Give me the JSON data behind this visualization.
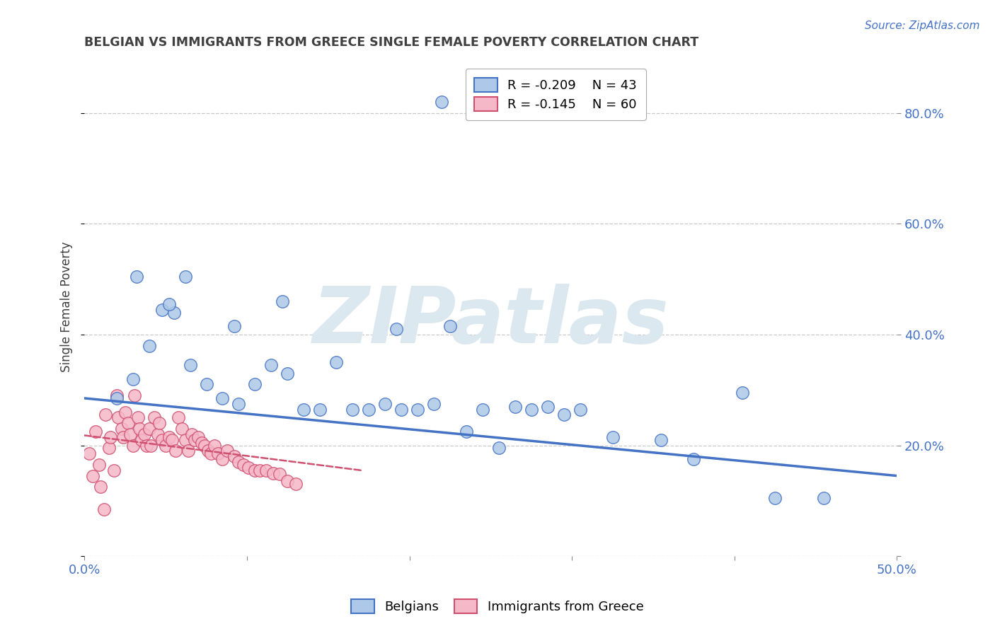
{
  "title": "BELGIAN VS IMMIGRANTS FROM GREECE SINGLE FEMALE POVERTY CORRELATION CHART",
  "source": "Source: ZipAtlas.com",
  "ylabel": "Single Female Poverty",
  "watermark": "ZIPatlas",
  "xlim": [
    0.0,
    0.5
  ],
  "ylim": [
    0.0,
    0.9
  ],
  "xticks": [
    0.0,
    0.1,
    0.2,
    0.3,
    0.4,
    0.5
  ],
  "yticks": [
    0.0,
    0.2,
    0.4,
    0.6,
    0.8
  ],
  "ytick_labels": [
    "",
    "20.0%",
    "40.0%",
    "60.0%",
    "80.0%"
  ],
  "xtick_labels": [
    "0.0%",
    "",
    "",
    "",
    "",
    "50.0%"
  ],
  "legend_entries": [
    {
      "label": "Belgians",
      "color": "#adc8e8",
      "edge": "#4472c4",
      "R": "-0.209",
      "N": "43"
    },
    {
      "label": "Immigrants from Greece",
      "color": "#f5b8c8",
      "edge": "#d05070",
      "R": "-0.145",
      "N": "60"
    }
  ],
  "belgian_x": [
    0.22,
    0.048,
    0.02,
    0.03,
    0.04,
    0.055,
    0.065,
    0.075,
    0.085,
    0.095,
    0.105,
    0.115,
    0.125,
    0.135,
    0.145,
    0.155,
    0.165,
    0.175,
    0.185,
    0.195,
    0.205,
    0.215,
    0.235,
    0.245,
    0.255,
    0.265,
    0.275,
    0.285,
    0.295,
    0.305,
    0.325,
    0.355,
    0.375,
    0.405,
    0.425,
    0.455,
    0.032,
    0.052,
    0.062,
    0.092,
    0.122,
    0.192,
    0.225
  ],
  "belgian_y": [
    0.82,
    0.445,
    0.285,
    0.32,
    0.38,
    0.44,
    0.345,
    0.31,
    0.285,
    0.275,
    0.31,
    0.345,
    0.33,
    0.265,
    0.265,
    0.35,
    0.265,
    0.265,
    0.275,
    0.265,
    0.265,
    0.275,
    0.225,
    0.265,
    0.195,
    0.27,
    0.265,
    0.27,
    0.255,
    0.265,
    0.215,
    0.21,
    0.175,
    0.295,
    0.105,
    0.105,
    0.505,
    0.455,
    0.505,
    0.415,
    0.46,
    0.41,
    0.415
  ],
  "greek_x": [
    0.003,
    0.005,
    0.007,
    0.009,
    0.01,
    0.012,
    0.013,
    0.015,
    0.016,
    0.018,
    0.02,
    0.021,
    0.023,
    0.024,
    0.025,
    0.027,
    0.028,
    0.03,
    0.031,
    0.033,
    0.034,
    0.035,
    0.037,
    0.038,
    0.04,
    0.041,
    0.043,
    0.045,
    0.046,
    0.048,
    0.05,
    0.052,
    0.054,
    0.056,
    0.058,
    0.06,
    0.062,
    0.064,
    0.066,
    0.068,
    0.07,
    0.072,
    0.074,
    0.076,
    0.078,
    0.08,
    0.082,
    0.085,
    0.088,
    0.092,
    0.095,
    0.098,
    0.101,
    0.105,
    0.108,
    0.112,
    0.116,
    0.12,
    0.125,
    0.13
  ],
  "greek_y": [
    0.185,
    0.145,
    0.225,
    0.165,
    0.125,
    0.085,
    0.255,
    0.195,
    0.215,
    0.155,
    0.29,
    0.25,
    0.23,
    0.215,
    0.26,
    0.24,
    0.22,
    0.2,
    0.29,
    0.25,
    0.23,
    0.21,
    0.22,
    0.2,
    0.23,
    0.2,
    0.25,
    0.22,
    0.24,
    0.21,
    0.2,
    0.215,
    0.21,
    0.19,
    0.25,
    0.23,
    0.21,
    0.19,
    0.22,
    0.21,
    0.215,
    0.205,
    0.2,
    0.19,
    0.185,
    0.2,
    0.185,
    0.175,
    0.19,
    0.18,
    0.17,
    0.165,
    0.16,
    0.155,
    0.155,
    0.155,
    0.15,
    0.148,
    0.135,
    0.13
  ],
  "belgian_line_color": "#4472c4",
  "greek_line_color": "#d05070",
  "belgian_scatter_color": "#adc8e8",
  "greek_scatter_color": "#f5b8c8",
  "axis_color": "#4472c4",
  "grid_color": "#c8c8c8",
  "title_color": "#404040",
  "watermark_color": "#dce8f0",
  "background_color": "#ffffff",
  "belgian_line_start_y": 0.285,
  "belgian_line_end_y": 0.145,
  "greek_line_start_y": 0.218,
  "greek_line_end_y": 0.155
}
